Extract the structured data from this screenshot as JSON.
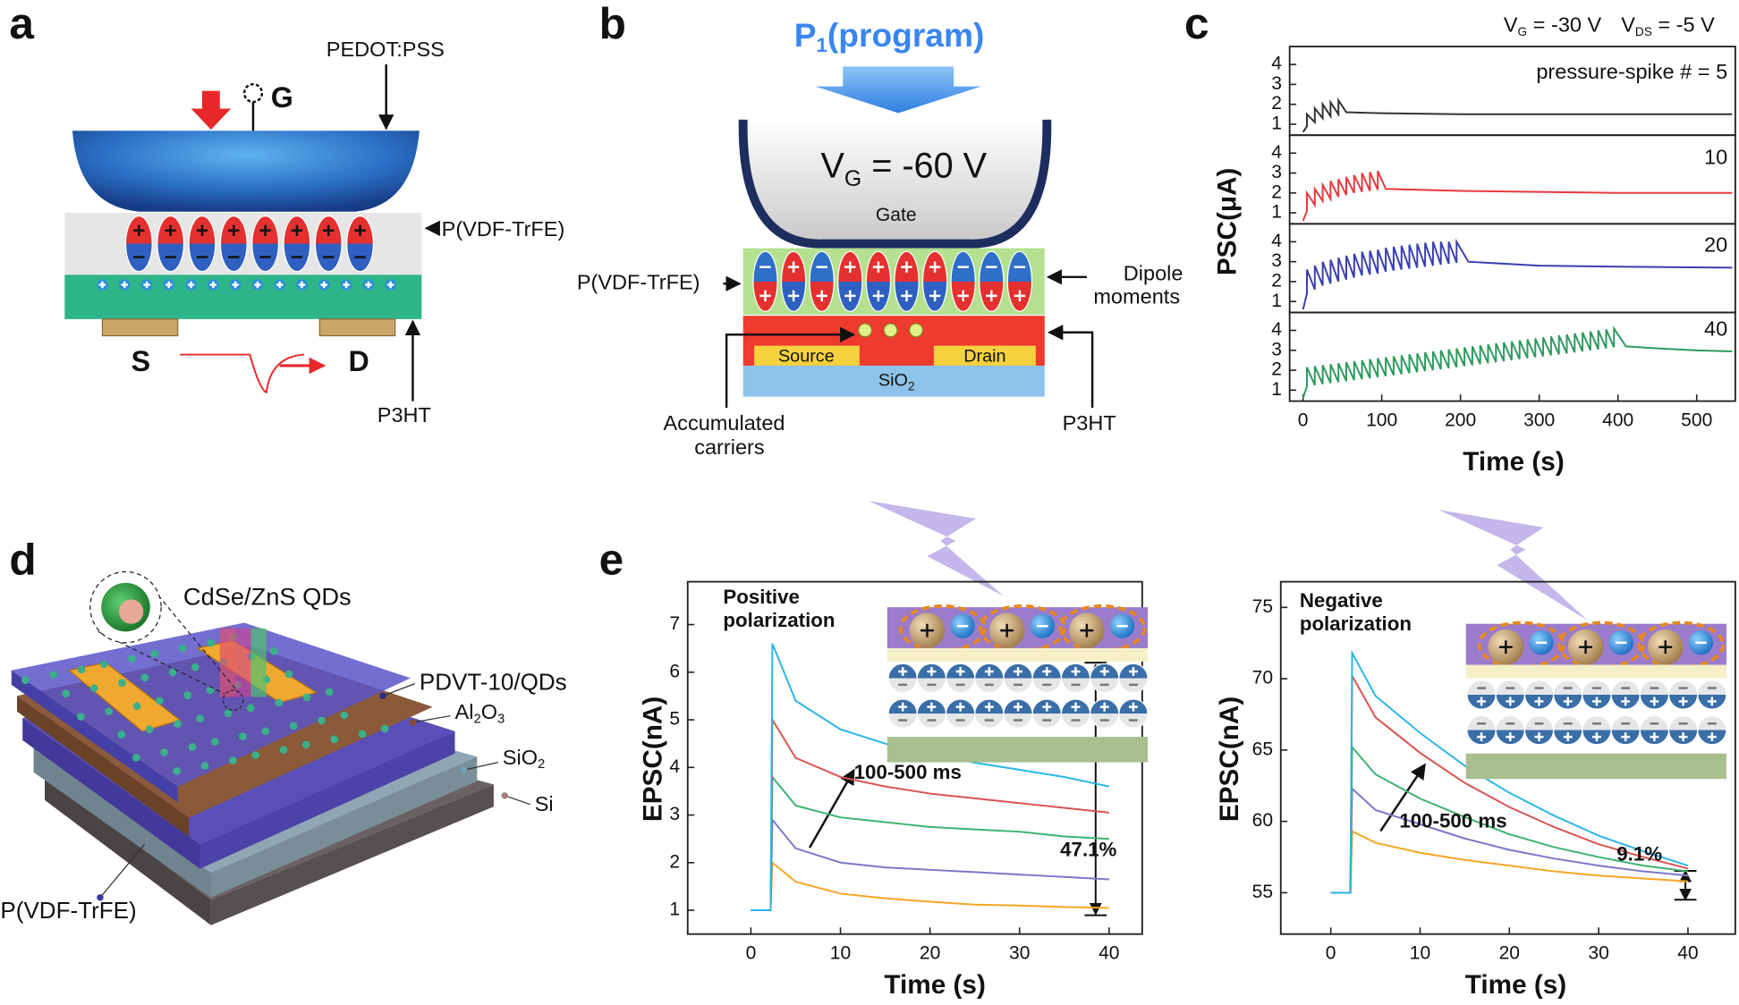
{
  "panel_labels": [
    "a",
    "b",
    "c",
    "d",
    "e"
  ],
  "diagram_a": {
    "gate_material": "PEDOT:PSS",
    "gate": "G",
    "dielectric": "P(VDF-TrFE)",
    "source": "S",
    "drain": "D",
    "channel": "P3HT"
  },
  "diagram_b": {
    "pulse": [
      "P",
      "1",
      "(program)"
    ],
    "gate_voltage": [
      "V",
      "G",
      " = -60 V"
    ],
    "gate": "Gate",
    "dielectric": "P(VDF-TrFE)",
    "dipole_label": [
      "Dipole",
      "moments"
    ],
    "source": "Source",
    "drain": "Drain",
    "substrate": [
      "SiO",
      "2"
    ],
    "carriers_label": [
      "Accumulated",
      "carriers"
    ],
    "channel": "P3HT"
  },
  "diagram_d": {
    "quantum_dots": "CdSe/ZnS QDs",
    "channel": "PDVT-10/QDs",
    "oxide": [
      "Al",
      "2",
      "O",
      "3"
    ],
    "substrate_oxide": [
      "SiO",
      "2"
    ],
    "substrate": "Si",
    "dielectric": "P(VDF-TrFE)"
  },
  "panel_c_conditions": [
    [
      "V",
      "G",
      " = -30 V"
    ],
    [
      "V",
      "DS",
      " = -5 V"
    ]
  ],
  "chart_data": [
    {
      "type": "line",
      "ylabel": "PSC(μA)",
      "annotations": [
        "pressure-spike # = 5"
      ],
      "color": "#333333",
      "xlim": [
        -17,
        549
      ],
      "ylim": [
        0.45,
        4.9
      ],
      "yticks": [
        1,
        2,
        3,
        4
      ],
      "x": [
        0,
        5,
        5,
        15,
        15,
        25,
        25,
        35,
        35,
        45,
        45,
        55,
        100,
        200,
        300,
        400,
        545
      ],
      "values": [
        0.6,
        0.9,
        1.5,
        1.1,
        1.8,
        1.3,
        2.0,
        1.4,
        2.1,
        1.5,
        2.2,
        1.6,
        1.55,
        1.5,
        1.5,
        1.5,
        1.5
      ]
    },
    {
      "type": "line",
      "annotations": [
        "10"
      ],
      "color": "#e8383d",
      "xlim": [
        -17,
        549
      ],
      "ylim": [
        0.45,
        4.9
      ],
      "yticks": [
        1,
        2,
        3,
        4
      ],
      "x": [
        0,
        5,
        5,
        15,
        15,
        25,
        25,
        35,
        35,
        45,
        45,
        55,
        55,
        65,
        65,
        75,
        75,
        85,
        85,
        95,
        95,
        105,
        200,
        300,
        400,
        545
      ],
      "values": [
        0.6,
        1.1,
        2.0,
        1.4,
        2.2,
        1.6,
        2.4,
        1.7,
        2.6,
        1.8,
        2.7,
        1.9,
        2.8,
        2.0,
        2.9,
        2.05,
        3.0,
        2.1,
        3.05,
        2.15,
        3.1,
        2.2,
        2.1,
        2.05,
        2.0,
        2.0
      ]
    },
    {
      "type": "line",
      "annotations": [
        "20"
      ],
      "color": "#3a3fb0",
      "xlim": [
        -17,
        549
      ],
      "ylim": [
        0.45,
        4.9
      ],
      "yticks": [
        1,
        2,
        3,
        4
      ],
      "x": [
        0,
        5,
        5,
        15,
        15,
        25,
        25,
        35,
        35,
        45,
        45,
        55,
        55,
        65,
        65,
        75,
        75,
        85,
        85,
        95,
        95,
        105,
        105,
        115,
        115,
        125,
        125,
        135,
        135,
        145,
        145,
        155,
        155,
        165,
        165,
        175,
        175,
        185,
        185,
        195,
        195,
        210,
        300,
        400,
        545
      ],
      "values": [
        0.6,
        1.4,
        2.6,
        1.6,
        2.8,
        1.8,
        3.0,
        1.9,
        3.1,
        2.0,
        3.2,
        2.1,
        3.3,
        2.2,
        3.4,
        2.3,
        3.5,
        2.35,
        3.55,
        2.4,
        3.6,
        2.5,
        3.7,
        2.55,
        3.75,
        2.6,
        3.8,
        2.65,
        3.85,
        2.7,
        3.9,
        2.75,
        3.95,
        2.8,
        4.0,
        2.85,
        4.0,
        2.9,
        4.0,
        2.95,
        4.0,
        3.0,
        2.8,
        2.75,
        2.7
      ]
    },
    {
      "type": "line",
      "xlabel": "Time (s)",
      "annotations": [
        "40"
      ],
      "color": "#2e9a5e",
      "xlim": [
        -17,
        549
      ],
      "ylim": [
        0.45,
        4.9
      ],
      "yticks": [
        1,
        2,
        3,
        4
      ],
      "xticks": [
        0,
        100,
        200,
        300,
        400,
        500
      ],
      "x": [
        0,
        5,
        5,
        15,
        15,
        25,
        25,
        35,
        35,
        45,
        45,
        55,
        55,
        65,
        65,
        75,
        75,
        85,
        85,
        95,
        95,
        105,
        105,
        115,
        115,
        125,
        125,
        135,
        135,
        145,
        145,
        155,
        155,
        165,
        165,
        175,
        175,
        185,
        185,
        195,
        195,
        205,
        205,
        215,
        215,
        225,
        225,
        235,
        235,
        245,
        245,
        255,
        255,
        265,
        265,
        275,
        275,
        285,
        285,
        295,
        295,
        305,
        305,
        315,
        315,
        325,
        325,
        335,
        335,
        345,
        345,
        355,
        355,
        365,
        365,
        375,
        375,
        385,
        385,
        395,
        395,
        410,
        450,
        500,
        545
      ],
      "values": [
        0.6,
        1.2,
        2.15,
        1.25,
        2.2,
        1.3,
        2.25,
        1.35,
        2.3,
        1.4,
        2.35,
        1.45,
        2.4,
        1.5,
        2.45,
        1.55,
        2.5,
        1.6,
        2.55,
        1.65,
        2.6,
        1.7,
        2.65,
        1.75,
        2.7,
        1.8,
        2.75,
        1.85,
        2.8,
        1.9,
        2.85,
        1.95,
        2.9,
        2.0,
        2.95,
        2.05,
        3.0,
        2.1,
        3.05,
        2.15,
        3.1,
        2.2,
        3.15,
        2.25,
        3.2,
        2.3,
        3.25,
        2.35,
        3.3,
        2.4,
        3.35,
        2.45,
        3.4,
        2.5,
        3.45,
        2.55,
        3.5,
        2.6,
        3.55,
        2.65,
        3.6,
        2.7,
        3.65,
        2.75,
        3.7,
        2.8,
        3.75,
        2.85,
        3.8,
        2.9,
        3.85,
        2.95,
        3.9,
        3.0,
        3.95,
        3.05,
        4.0,
        3.1,
        4.05,
        3.15,
        4.1,
        3.2,
        3.1,
        3.0,
        2.95
      ]
    },
    {
      "type": "line",
      "xlabel": "Time (s)",
      "ylabel": "EPSC(nA)",
      "inset_title": [
        "Positive",
        "polarization"
      ],
      "annotations": [
        "100-500 ms",
        "47.1%"
      ],
      "xlim": [
        -7.06,
        43.7
      ],
      "ylim": [
        0.5,
        7.9
      ],
      "xticks": [
        0,
        10,
        20,
        30,
        40
      ],
      "yticks": [
        1,
        2,
        3,
        4,
        5,
        6,
        7
      ],
      "x": [
        0,
        2.2,
        2.4,
        5,
        10,
        15,
        20,
        25,
        30,
        35,
        40
      ],
      "series": [
        {
          "color": "#f5a623",
          "values": [
            1,
            1,
            2.0,
            1.6,
            1.35,
            1.25,
            1.18,
            1.12,
            1.1,
            1.07,
            1.05
          ]
        },
        {
          "color": "#7b78c8",
          "values": [
            1,
            1,
            2.9,
            2.3,
            2.0,
            1.9,
            1.85,
            1.8,
            1.75,
            1.7,
            1.65
          ]
        },
        {
          "color": "#3cb371",
          "values": [
            1,
            1,
            3.8,
            3.2,
            2.95,
            2.85,
            2.75,
            2.7,
            2.65,
            2.55,
            2.5
          ]
        },
        {
          "color": "#d9534f",
          "values": [
            1,
            1,
            5.0,
            4.2,
            3.8,
            3.6,
            3.45,
            3.35,
            3.25,
            3.15,
            3.05
          ]
        },
        {
          "color": "#29b6e8",
          "values": [
            1,
            1,
            6.6,
            5.4,
            4.8,
            4.5,
            4.3,
            4.1,
            3.95,
            3.8,
            3.6
          ]
        }
      ]
    },
    {
      "type": "line",
      "xlabel": "Time (s)",
      "ylabel": "EPSC(nA)",
      "inset_title": [
        "Negative",
        "polarization"
      ],
      "annotations": [
        "100-500 ms",
        "9.1%"
      ],
      "xlim": [
        -5.6,
        45.3
      ],
      "ylim": [
        52.1,
        76.8
      ],
      "xticks": [
        0,
        10,
        20,
        30,
        40
      ],
      "yticks": [
        55,
        60,
        65,
        70,
        75
      ],
      "x": [
        0,
        2.2,
        2.4,
        5,
        10,
        15,
        20,
        25,
        30,
        35,
        40
      ],
      "series": [
        {
          "color": "#f5a623",
          "values": [
            55,
            55,
            59.3,
            58.5,
            57.8,
            57.3,
            56.9,
            56.5,
            56.2,
            56.0,
            55.8
          ]
        },
        {
          "color": "#7b78c8",
          "values": [
            55,
            55,
            62.3,
            60.8,
            59.8,
            58.8,
            58.0,
            57.4,
            56.9,
            56.5,
            56.2
          ]
        },
        {
          "color": "#3cb371",
          "values": [
            55,
            55,
            65.2,
            63.3,
            61.6,
            60.3,
            59.1,
            58.2,
            57.5,
            56.9,
            56.5
          ]
        },
        {
          "color": "#d9534f",
          "values": [
            55,
            55,
            70.2,
            67.3,
            64.8,
            62.7,
            61.0,
            59.6,
            58.4,
            57.5,
            56.7
          ]
        },
        {
          "color": "#29b6e8",
          "values": [
            55,
            55,
            71.8,
            68.8,
            66.2,
            63.9,
            62.0,
            60.4,
            59.0,
            57.9,
            56.9
          ]
        }
      ]
    }
  ]
}
